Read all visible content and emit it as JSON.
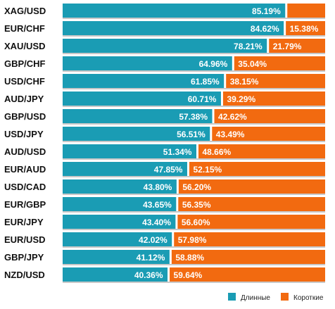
{
  "chart_data": {
    "type": "bar",
    "stacked": true,
    "orientation": "horizontal",
    "xlim": [
      0,
      100
    ],
    "grid": false,
    "legend_position": "bottom-right",
    "categories": [
      "XAG/USD",
      "EUR/CHF",
      "XAU/USD",
      "GBP/CHF",
      "USD/CHF",
      "AUD/JPY",
      "GBP/USD",
      "USD/JPY",
      "AUD/USD",
      "EUR/AUD",
      "USD/CAD",
      "EUR/GBP",
      "EUR/JPY",
      "EUR/USD",
      "GBP/JPY",
      "NZD/USD"
    ],
    "series": [
      {
        "name": "Длинные",
        "color": "#1a9cb4",
        "values": [
          85.19,
          84.62,
          78.21,
          64.96,
          61.85,
          60.71,
          57.38,
          56.51,
          51.34,
          47.85,
          43.8,
          43.65,
          43.4,
          42.02,
          41.12,
          40.36
        ],
        "labels": [
          "85.19%",
          "84.62%",
          "78.21%",
          "64.96%",
          "61.85%",
          "60.71%",
          "57.38%",
          "56.51%",
          "51.34%",
          "47.85%",
          "43.80%",
          "43.65%",
          "43.40%",
          "42.02%",
          "41.12%",
          "40.36%"
        ]
      },
      {
        "name": "Короткие",
        "color": "#f26a10",
        "values": [
          14.81,
          15.38,
          21.79,
          35.04,
          38.15,
          39.29,
          42.62,
          43.49,
          48.66,
          52.15,
          56.2,
          56.35,
          56.6,
          57.98,
          58.88,
          59.64
        ],
        "labels": [
          "",
          "15.38%",
          "21.79%",
          "35.04%",
          "38.15%",
          "39.29%",
          "42.62%",
          "43.49%",
          "48.66%",
          "52.15%",
          "56.20%",
          "56.35%",
          "56.60%",
          "57.98%",
          "58.88%",
          "59.64%"
        ]
      }
    ]
  }
}
